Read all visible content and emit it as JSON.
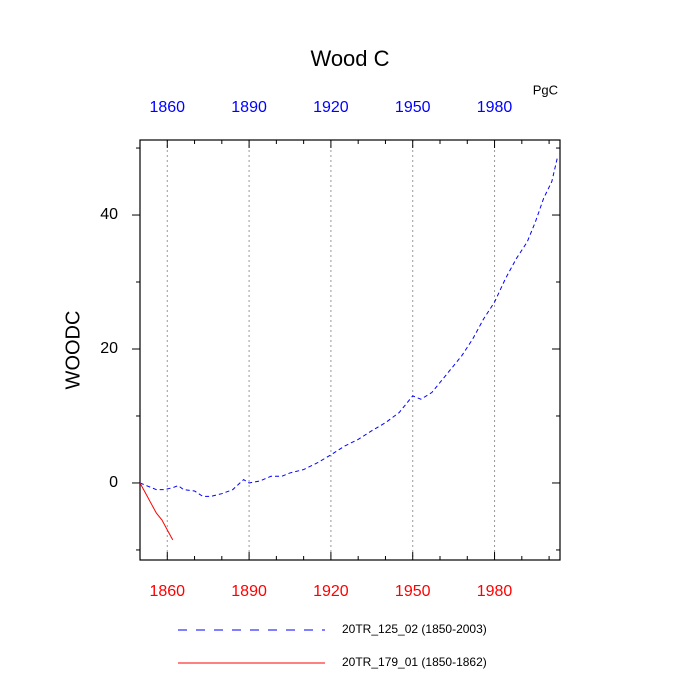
{
  "chart_data": {
    "type": "line",
    "title": "Wood C",
    "units": "PgC",
    "y_label": "WOODC",
    "xlim": [
      1850,
      2004
    ],
    "ylim": [
      -11.5,
      51.2
    ],
    "xticks": [
      1860,
      1890,
      1920,
      1950,
      1980
    ],
    "xminorticks": [
      1850,
      1870,
      1880,
      1900,
      1910,
      1930,
      1940,
      1960,
      1970,
      1990,
      2000
    ],
    "yticks": [
      0,
      20,
      40
    ],
    "yminorticks": [
      -10,
      10,
      30,
      50
    ],
    "x_tick_label_colors": {
      "bottom": "#ff0000",
      "top": "#0000ff"
    },
    "x_grid": true,
    "series": [
      {
        "name": "20TR_125_02 (1850-2003)",
        "color": "#0000ff",
        "dash": "4 3",
        "x": [
          1850,
          1853,
          1856,
          1859,
          1862,
          1864,
          1866,
          1870,
          1873,
          1876,
          1880,
          1884,
          1888,
          1890,
          1894,
          1898,
          1902,
          1905,
          1910,
          1915,
          1920,
          1925,
          1930,
          1935,
          1940,
          1945,
          1948,
          1950,
          1953,
          1957,
          1960,
          1964,
          1968,
          1972,
          1976,
          1980,
          1984,
          1988,
          1992,
          1995,
          1998,
          2001,
          2003
        ],
        "values": [
          0,
          -0.5,
          -1,
          -1,
          -0.7,
          -0.4,
          -1,
          -1.2,
          -2,
          -2,
          -1.6,
          -1,
          0.5,
          0,
          0.3,
          1,
          1,
          1.5,
          2,
          3,
          4.2,
          5.5,
          6.5,
          7.8,
          9,
          10.5,
          12,
          13,
          12.5,
          13.5,
          15,
          17,
          19,
          21.5,
          24.5,
          27,
          30.5,
          33.5,
          36,
          39,
          42.5,
          45,
          48.5
        ]
      },
      {
        "name": "20TR_179_01 (1850-1862)",
        "color": "#ff0000",
        "dash": "none",
        "x": [
          1850,
          1852,
          1854,
          1856,
          1858,
          1860,
          1862
        ],
        "values": [
          0,
          -1.5,
          -3,
          -4.5,
          -5.5,
          -7,
          -8.5
        ]
      }
    ]
  }
}
